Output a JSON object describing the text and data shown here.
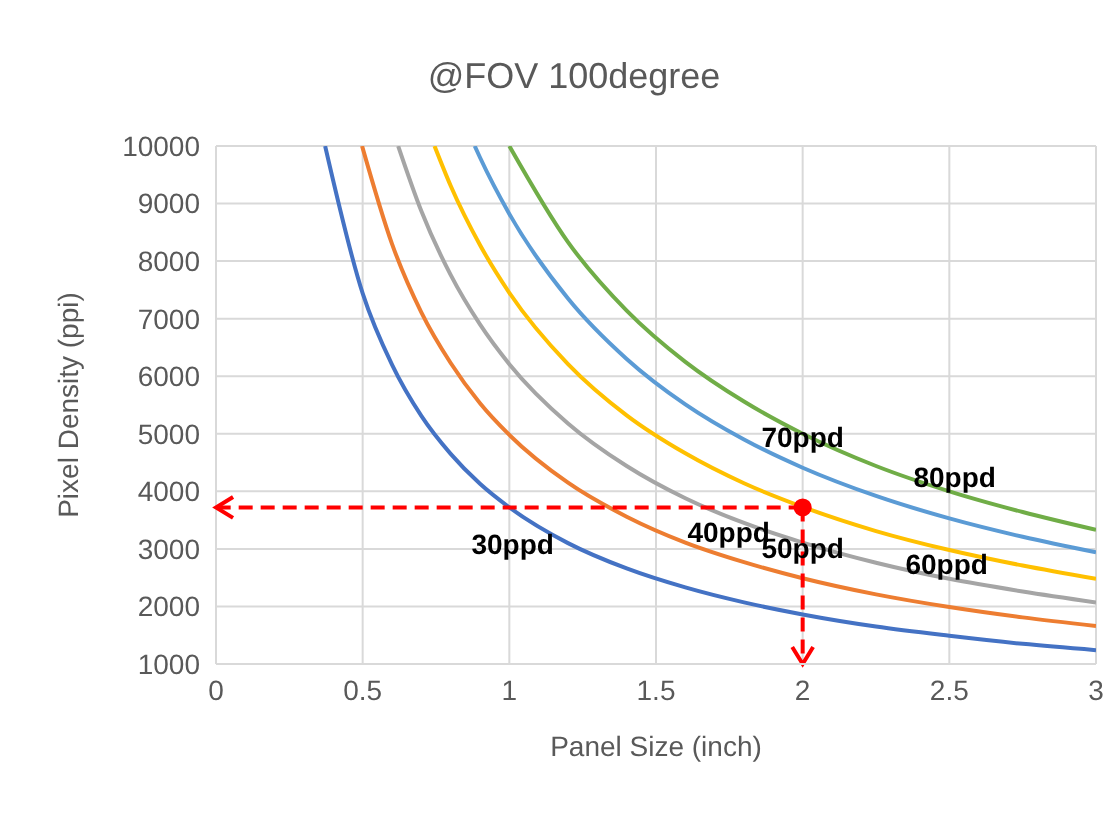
{
  "chart_data": {
    "type": "line",
    "title": "@FOV 100degree",
    "xlabel": "Panel Size (inch)",
    "ylabel": "Pixel Density (ppi)",
    "xlim": [
      0,
      3
    ],
    "xticks": [
      0,
      0.5,
      1,
      1.5,
      2,
      2.5,
      3
    ],
    "ylim": [
      1000,
      10000
    ],
    "yticks": [
      1000,
      2000,
      3000,
      4000,
      5000,
      6000,
      7000,
      8000,
      9000,
      10000
    ],
    "grid": true,
    "legend": false,
    "marker": "none",
    "line_style": "solid",
    "series": [
      {
        "name": "30ppd",
        "color": "#4472c4",
        "x": [
          0.372,
          0.5,
          0.6,
          0.7,
          0.8,
          0.9,
          1,
          1.2,
          1.4,
          1.6,
          1.8,
          2,
          2.25,
          2.5,
          2.75,
          3
        ],
        "values": [
          10000,
          7440,
          6200,
          5310,
          4650,
          4130,
          3720,
          3100,
          2660,
          2330,
          2070,
          1860,
          1650,
          1490,
          1350,
          1240
        ]
      },
      {
        "name": "40ppd",
        "color": "#ed7d31",
        "x": [
          0.498,
          0.6,
          0.7,
          0.8,
          0.9,
          1,
          1.2,
          1.4,
          1.6,
          1.8,
          2,
          2.25,
          2.5,
          2.75,
          3
        ],
        "values": [
          10000,
          8300,
          7110,
          6230,
          5530,
          4980,
          4150,
          3560,
          3110,
          2770,
          2490,
          2210,
          1990,
          1810,
          1660
        ]
      },
      {
        "name": "50ppd",
        "color": "#a5a5a5",
        "x": [
          0.621,
          0.7,
          0.8,
          0.9,
          1,
          1.2,
          1.4,
          1.6,
          1.8,
          2,
          2.25,
          2.5,
          2.75,
          3
        ],
        "values": [
          10000,
          8870,
          7760,
          6900,
          6210,
          5180,
          4440,
          3880,
          3450,
          3110,
          2760,
          2480,
          2260,
          2070
        ]
      },
      {
        "name": "60ppd",
        "color": "#ffc000",
        "x": [
          0.745,
          0.8,
          0.9,
          1,
          1.2,
          1.4,
          1.6,
          1.8,
          2,
          2.25,
          2.5,
          2.75,
          3
        ],
        "values": [
          10000,
          9310,
          8280,
          7450,
          6210,
          5320,
          4660,
          4140,
          3730,
          3310,
          2980,
          2710,
          2480
        ]
      },
      {
        "name": "70ppd",
        "color": "#5b9bd5",
        "x": [
          0.882,
          0.9,
          1,
          1.2,
          1.4,
          1.6,
          1.8,
          2,
          2.25,
          2.5,
          2.75,
          3
        ],
        "values": [
          10000,
          9800,
          8820,
          7350,
          6300,
          5510,
          4900,
          4410,
          3920,
          3530,
          3210,
          2940
        ]
      },
      {
        "name": "80ppd",
        "color": "#70ad47",
        "x": [
          1,
          1.2,
          1.4,
          1.6,
          1.8,
          2,
          2.25,
          2.5,
          2.75,
          3
        ],
        "values": [
          10000,
          8330,
          7140,
          6250,
          5560,
          5000,
          4440,
          4000,
          3640,
          3330
        ]
      },
      {
        "type": "line",
        "line_style": "dashed",
        "color": "#ff0000",
        "x": [
          2,
          0
        ],
        "values": [
          3720,
          3720
        ]
      },
      {
        "type": "line",
        "line_style": "dashed",
        "color": "#ff0000",
        "x": [
          2,
          2
        ],
        "values": [
          3720,
          1000
        ]
      },
      {
        "type": "scatter",
        "marker": "circle",
        "color": "#ff0000",
        "x": [
          2
        ],
        "values": [
          3720
        ]
      }
    ]
  }
}
